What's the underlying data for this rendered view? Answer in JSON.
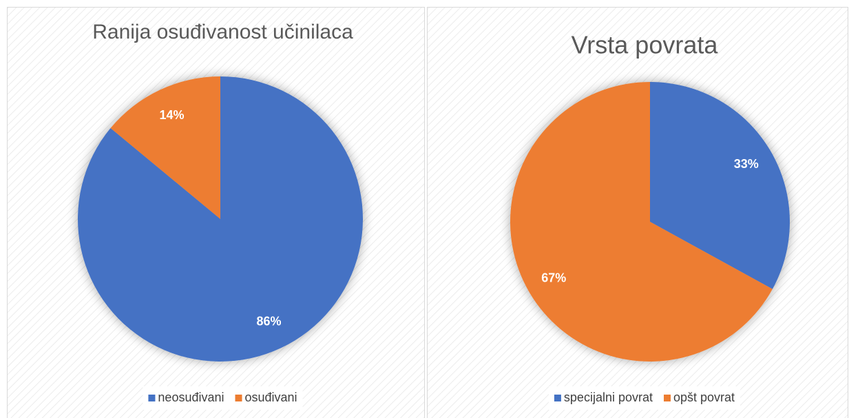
{
  "chart_data": [
    {
      "type": "pie",
      "title": "Ranija osuđivanost učinilaca",
      "categories": [
        "neosuđivani",
        "osuđivani"
      ],
      "values": [
        86,
        14
      ],
      "value_labels": [
        "86%",
        "14%"
      ],
      "colors": [
        "#4472c4",
        "#ed7d31"
      ],
      "legend": "bottom"
    },
    {
      "type": "pie",
      "title": "Vrsta povrata",
      "categories": [
        "specijalni povrat",
        "opšt povrat"
      ],
      "values": [
        33,
        67
      ],
      "value_labels": [
        "33%",
        "67%"
      ],
      "colors": [
        "#4472c4",
        "#ed7d31"
      ],
      "legend": "bottom"
    }
  ]
}
